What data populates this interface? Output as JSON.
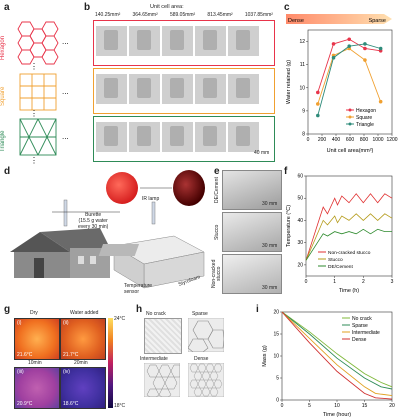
{
  "panels": {
    "a": {
      "label": "a",
      "rows": [
        "Hexagon",
        "Square",
        "Triangle"
      ],
      "dots": "..."
    },
    "b": {
      "label": "b",
      "title": "Unit cell area:",
      "areas": [
        "140.25mm²",
        "364.65mm²",
        "589.05mm²",
        "813.45mm²",
        "1037.85mm²"
      ],
      "scale": "40 mm"
    },
    "c": {
      "label": "c",
      "dense": "Dense",
      "sparse": "Sparse",
      "xlabel": "Unit cell area(mm²)",
      "ylabel": "Water retained (g)",
      "legend": [
        "Hexagon",
        "Square",
        "Triangle"
      ]
    },
    "d": {
      "label": "d",
      "ir": "IR lamp",
      "burette": "Burette\n(15.5 g water\nevery 30 min)",
      "sensor": "Temperature\nsensor",
      "foam": "Styrofoam"
    },
    "e": {
      "label": "e",
      "rows": [
        "DE/Cement",
        "Stucco",
        "Non-cracked\nstucco"
      ],
      "scale": "30 mm"
    },
    "f": {
      "label": "f",
      "xlabel": "Time (h)",
      "ylabel": "Temperature (°C)",
      "legend": [
        "Non-cracked stucco",
        "Stucco",
        "DE/Cement"
      ]
    },
    "g": {
      "label": "g",
      "cols": [
        "Dry",
        "Water added"
      ],
      "times": [
        "10min",
        "20min"
      ],
      "temps": [
        "21.6°C",
        "21.7°C",
        "20.9°C",
        "18.6°C"
      ],
      "sub": [
        "(i)",
        "(ii)",
        "(iii)",
        "(iv)"
      ],
      "scale_max": "24°C",
      "scale_min": "18°C"
    },
    "h": {
      "label": "h",
      "names": [
        "No crack",
        "Sparse",
        "Intermediate",
        "Dense"
      ]
    },
    "i": {
      "label": "i",
      "xlabel": "Time (hour)",
      "ylabel": "Mass (g)",
      "legend": [
        "No crack",
        "Sparse",
        "Intermediate",
        "Dense"
      ]
    }
  },
  "chart_data": [
    {
      "type": "line",
      "panel": "c",
      "x": [
        140.25,
        364.65,
        589.05,
        813.45,
        1037.85
      ],
      "xlim": [
        0,
        1200
      ],
      "ylim": [
        8,
        12.5
      ],
      "xticks": [
        0,
        200,
        400,
        600,
        800,
        1000,
        1200
      ],
      "yticks": [
        8,
        9,
        10,
        11,
        12
      ],
      "series": [
        {
          "name": "Hexagon",
          "color": "#e8344a",
          "values": [
            9.8,
            11.9,
            12.1,
            11.7,
            11.6
          ]
        },
        {
          "name": "Square",
          "color": "#f0a030",
          "values": [
            9.3,
            11.4,
            11.7,
            11.2,
            9.4
          ]
        },
        {
          "name": "Triangle",
          "color": "#2e8b7a",
          "values": [
            8.8,
            11.3,
            11.8,
            11.9,
            11.7
          ]
        }
      ]
    },
    {
      "type": "line",
      "panel": "f",
      "xlim": [
        0,
        3
      ],
      "ylim": [
        15,
        60
      ],
      "xticks": [
        0,
        1,
        2,
        3
      ],
      "yticks": [
        20,
        30,
        40,
        50,
        60
      ],
      "series": [
        {
          "name": "Non-cracked stucco",
          "color": "#e03030",
          "values": [
            [
              0,
              22
            ],
            [
              0.5,
              42
            ],
            [
              0.6,
              46
            ],
            [
              0.75,
              43
            ],
            [
              1,
              50
            ],
            [
              1.1,
              47
            ],
            [
              1.25,
              51
            ],
            [
              1.5,
              48
            ],
            [
              1.75,
              52
            ],
            [
              2,
              48
            ],
            [
              2.25,
              52
            ],
            [
              2.5,
              48
            ],
            [
              2.75,
              52
            ],
            [
              3,
              50
            ]
          ]
        },
        {
          "name": "Stucco",
          "color": "#b59b1a",
          "values": [
            [
              0,
              22
            ],
            [
              0.5,
              37
            ],
            [
              0.6,
              40
            ],
            [
              0.75,
              38
            ],
            [
              1,
              42
            ],
            [
              1.1,
              39
            ],
            [
              1.25,
              42
            ],
            [
              1.5,
              40
            ],
            [
              1.75,
              43
            ],
            [
              2,
              40
            ],
            [
              2.25,
              43
            ],
            [
              2.5,
              40
            ],
            [
              2.75,
              43
            ],
            [
              3,
              41
            ]
          ]
        },
        {
          "name": "DE/Cement",
          "color": "#2d8a2d",
          "values": [
            [
              0,
              22
            ],
            [
              0.5,
              32
            ],
            [
              0.6,
              34
            ],
            [
              0.75,
              33
            ],
            [
              1,
              35
            ],
            [
              1.25,
              34
            ],
            [
              1.5,
              35
            ],
            [
              1.75,
              34
            ],
            [
              2,
              36
            ],
            [
              2.25,
              34
            ],
            [
              2.5,
              36
            ],
            [
              2.75,
              35
            ],
            [
              3,
              35
            ]
          ]
        }
      ]
    },
    {
      "type": "line",
      "panel": "i",
      "xlim": [
        0,
        20
      ],
      "ylim": [
        0,
        20
      ],
      "xticks": [
        0,
        5,
        10,
        15,
        20
      ],
      "yticks": [
        0,
        5,
        10,
        15,
        20
      ],
      "series": [
        {
          "name": "No crack",
          "color": "#7fb83a",
          "values": [
            [
              0,
              20
            ],
            [
              5,
              15.5
            ],
            [
              10,
              10.5
            ],
            [
              15,
              6
            ],
            [
              18,
              4
            ],
            [
              20,
              3
            ]
          ]
        },
        {
          "name": "Sparse",
          "color": "#2e8b57",
          "values": [
            [
              0,
              20
            ],
            [
              5,
              15
            ],
            [
              10,
              9.5
            ],
            [
              15,
              5
            ],
            [
              18,
              3
            ],
            [
              20,
              2.5
            ]
          ]
        },
        {
          "name": "Intermediate",
          "color": "#e0a020",
          "values": [
            [
              0,
              20
            ],
            [
              5,
              14
            ],
            [
              10,
              8
            ],
            [
              15,
              3
            ],
            [
              17,
              1.5
            ],
            [
              20,
              1
            ]
          ]
        },
        {
          "name": "Dense",
          "color": "#d03030",
          "values": [
            [
              0,
              20
            ],
            [
              5,
              13
            ],
            [
              10,
              6.5
            ],
            [
              15,
              1.5
            ],
            [
              17,
              0.5
            ],
            [
              20,
              0.2
            ]
          ]
        }
      ]
    }
  ]
}
